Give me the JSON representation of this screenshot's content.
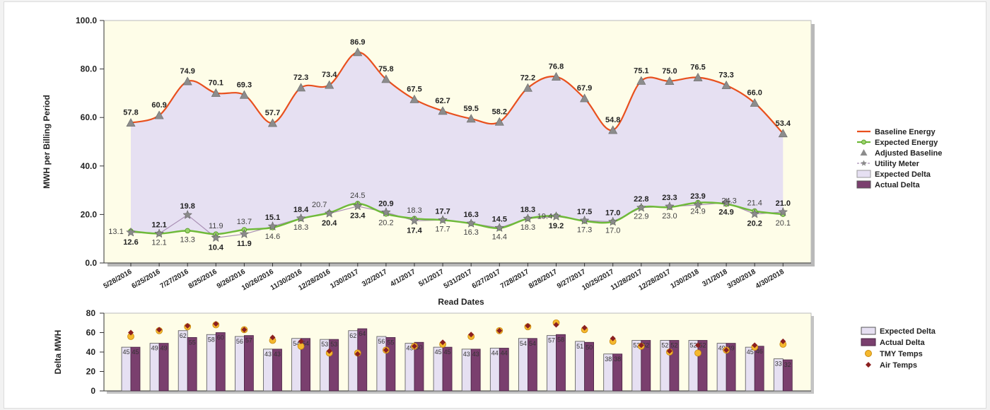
{
  "chart_data": [
    {
      "type": "line",
      "ylabel": "MWH per Billing Period",
      "xlabel": "Read Dates",
      "ylim": [
        0,
        100
      ],
      "yticks": [
        "0.0",
        "20.0",
        "40.0",
        "60.0",
        "80.0",
        "100.0"
      ],
      "grid": false,
      "legend_position": "right",
      "categories": [
        "5/28/2016",
        "6/25/2016",
        "7/27/2016",
        "8/25/2016",
        "9/26/2016",
        "10/26/2016",
        "11/30/2016",
        "12/28/2016",
        "1/30/2017",
        "3/2/2017",
        "4/1/2017",
        "5/1/2017",
        "5/31/2017",
        "6/27/2017",
        "7/28/2017",
        "8/28/2017",
        "9/27/2017",
        "10/25/2017",
        "11/28/2017",
        "12/28/2017",
        "1/30/2018",
        "3/1/2018",
        "3/30/2018",
        "4/30/2018"
      ],
      "series": [
        {
          "name": "Baseline Energy",
          "color": "#e8501e",
          "values": [
            57.8,
            60.9,
            74.9,
            70.1,
            69.3,
            57.7,
            72.3,
            73.4,
            86.9,
            75.8,
            67.5,
            62.7,
            59.5,
            58.2,
            72.2,
            76.8,
            67.9,
            54.8,
            75.1,
            75.0,
            76.5,
            73.3,
            66.0,
            53.4
          ]
        },
        {
          "name": "Expected Energy",
          "color": "#6fba3a",
          "values": [
            13.1,
            12.1,
            13.3,
            11.9,
            13.7,
            14.6,
            18.3,
            20.7,
            24.5,
            20.2,
            18.3,
            17.7,
            16.3,
            14.4,
            18.3,
            19.4,
            17.3,
            17.0,
            22.9,
            23.0,
            24.9,
            24.3,
            21.4,
            20.1
          ]
        },
        {
          "name": "Adjusted Baseline",
          "color": "#8c8c8c",
          "values": [
            57.8,
            60.9,
            74.9,
            70.1,
            69.3,
            57.7,
            72.3,
            73.4,
            86.9,
            75.8,
            67.5,
            62.7,
            59.5,
            58.2,
            72.2,
            76.8,
            67.9,
            54.8,
            75.1,
            75.0,
            76.5,
            73.3,
            66.0,
            53.4
          ]
        },
        {
          "name": "Utility Meter",
          "color": "#777777",
          "values": [
            12.6,
            12.1,
            19.8,
            10.4,
            11.9,
            15.1,
            18.4,
            20.4,
            23.4,
            20.9,
            17.4,
            17.7,
            16.3,
            14.5,
            18.3,
            19.2,
            17.5,
            17.0,
            22.8,
            23.3,
            23.9,
            24.9,
            20.2,
            21.0
          ]
        },
        {
          "name": "Expected Delta",
          "color": "#e6e0f2"
        },
        {
          "name": "Actual Delta",
          "color": "#7a3f6e"
        }
      ]
    },
    {
      "type": "bar",
      "ylabel": "Delta MWH",
      "ylim": [
        0,
        80
      ],
      "yticks": [
        "0",
        "20",
        "40",
        "60",
        "80"
      ],
      "legend_position": "right",
      "categories": [
        "5/28/2016",
        "6/25/2016",
        "7/27/2016",
        "8/25/2016",
        "9/26/2016",
        "10/26/2016",
        "11/30/2016",
        "12/28/2016",
        "1/30/2017",
        "3/2/2017",
        "4/1/2017",
        "5/1/2017",
        "5/31/2017",
        "6/27/2017",
        "7/28/2017",
        "8/28/2017",
        "9/27/2017",
        "10/25/2017",
        "11/28/2017",
        "12/28/2017",
        "1/30/2018",
        "3/1/2018",
        "3/30/2018",
        "4/30/2018"
      ],
      "series": [
        {
          "name": "Expected Delta",
          "color": "#e6e0f2",
          "values": [
            45,
            49,
            62,
            58,
            56,
            43,
            54,
            53,
            62,
            56,
            49,
            45,
            43,
            44,
            54,
            57,
            51,
            38,
            52,
            52,
            52,
            49,
            45,
            33
          ]
        },
        {
          "name": "Actual Delta",
          "color": "#7a3f6e",
          "values": [
            45,
            49,
            55,
            60,
            57,
            43,
            54,
            53,
            64,
            55,
            50,
            45,
            43,
            44,
            54,
            58,
            50,
            38,
            52,
            52,
            52,
            49,
            46,
            32
          ]
        },
        {
          "name": "TMY Temps",
          "color": "#f5b82e",
          "values": [
            56,
            62,
            66,
            68,
            63,
            52,
            46,
            39,
            39,
            42,
            46,
            48,
            56,
            62,
            66,
            70,
            63,
            51,
            46,
            40,
            39,
            42,
            45,
            48
          ]
        },
        {
          "name": "Air Temps",
          "color": "#8b2020",
          "values": [
            60,
            63,
            67,
            69,
            63,
            55,
            51,
            41,
            38,
            42,
            46,
            50,
            58,
            62,
            67,
            68,
            65,
            54,
            47,
            41,
            47,
            42,
            47,
            51
          ]
        }
      ]
    }
  ]
}
